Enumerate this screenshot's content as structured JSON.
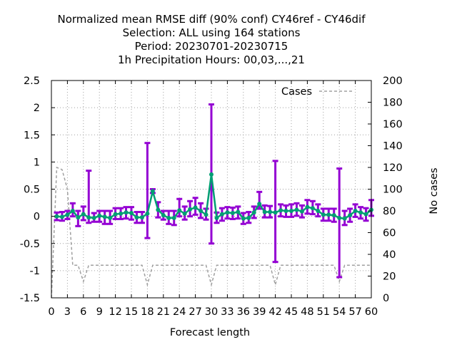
{
  "chart_data": {
    "type": "line",
    "title_lines": [
      "Normalized mean RMSE diff (90% conf) CY46ref - CY46dif",
      "Selection: ALL using   164 stations",
      "Period: 20230701-20230715",
      "1h Precipitation   Hours:  00,03,...,21"
    ],
    "xlabel": "Forecast length",
    "ylabel": "",
    "y2label": "No cases",
    "xlim": [
      0,
      60
    ],
    "ylim": [
      -1.5,
      2.5
    ],
    "y2lim": [
      0,
      200
    ],
    "x_ticks": [
      "0",
      "3",
      "6",
      "9",
      "12",
      "15",
      "18",
      "21",
      "24",
      "27",
      "30",
      "33",
      "36",
      "39",
      "42",
      "45",
      "48",
      "51",
      "54",
      "57",
      "60"
    ],
    "y_ticks": [
      "-1.5",
      "-1",
      "-0.5",
      "0",
      "0.5",
      "1",
      "1.5",
      "2",
      "2.5"
    ],
    "y2_ticks": [
      "0",
      "20",
      "40",
      "60",
      "80",
      "100",
      "120",
      "140",
      "160",
      "180",
      "200"
    ],
    "grid": true,
    "legend_position": "top-right",
    "legend_label": "Cases",
    "colors": {
      "errorbar": "#9400d3",
      "mean": "#009e73",
      "cases": "#a0a0a0"
    },
    "mean": {
      "x": [
        1,
        2,
        3,
        4,
        5,
        6,
        7,
        8,
        9,
        10,
        11,
        12,
        13,
        14,
        15,
        16,
        17,
        18,
        19,
        20,
        21,
        22,
        23,
        24,
        25,
        26,
        27,
        28,
        29,
        30,
        31,
        32,
        33,
        34,
        35,
        36,
        37,
        38,
        39,
        40,
        41,
        42,
        43,
        44,
        45,
        46,
        47,
        48,
        49,
        50,
        51,
        52,
        53,
        54,
        55,
        56,
        57,
        58,
        59,
        60
      ],
      "y": [
        0,
        -0.01,
        0.03,
        0.1,
        -0.02,
        0.04,
        -0.02,
        -0.03,
        0.01,
        -0.01,
        -0.03,
        0.04,
        0.05,
        0.07,
        0.06,
        -0.02,
        -0.02,
        0.05,
        0.46,
        0.12,
        0.02,
        -0.03,
        -0.03,
        0.11,
        0.05,
        0.13,
        0.16,
        0.1,
        0.03,
        0.77,
        -0.03,
        0.04,
        0.07,
        0.06,
        0.08,
        -0.04,
        -0.03,
        0.07,
        0.23,
        0.08,
        0.08,
        0.07,
        0.11,
        0.1,
        0.1,
        0.12,
        0.09,
        0.17,
        0.15,
        0.1,
        0.03,
        0.03,
        0.02,
        -0.03,
        -0.04,
        0.02,
        0.1,
        0.07,
        0.04,
        0.12
      ]
    },
    "err_low": [
      -0.07,
      -0.08,
      -0.05,
      0,
      -0.18,
      -0.07,
      -0.12,
      -0.1,
      -0.1,
      -0.14,
      -0.14,
      -0.05,
      -0.05,
      -0.04,
      -0.06,
      -0.12,
      -0.12,
      -0.4,
      0.43,
      -0.02,
      -0.06,
      -0.14,
      -0.16,
      0,
      -0.06,
      0,
      0.03,
      -0.03,
      -0.06,
      -0.5,
      -0.12,
      -0.08,
      -0.04,
      -0.05,
      -0.04,
      -0.14,
      -0.12,
      -0.03,
      0.14,
      -0.02,
      -0.02,
      -0.84,
      0,
      -0.01,
      -0.01,
      0.01,
      -0.02,
      0.05,
      0.04,
      0,
      -0.08,
      -0.08,
      -0.1,
      -1.12,
      -0.16,
      -0.1,
      -0.01,
      -0.04,
      -0.08,
      0.01
    ],
    "err_high": [
      0.07,
      0.08,
      0.1,
      0.24,
      0.1,
      0.18,
      0.84,
      0.06,
      0.1,
      0.1,
      0.1,
      0.15,
      0.15,
      0.17,
      0.17,
      0.08,
      0.08,
      1.35,
      0.5,
      0.26,
      0.1,
      0.1,
      0.1,
      0.32,
      0.18,
      0.28,
      0.34,
      0.24,
      0.14,
      2.06,
      0.07,
      0.15,
      0.17,
      0.16,
      0.18,
      0.06,
      0.08,
      0.18,
      0.45,
      0.2,
      0.19,
      1.02,
      0.22,
      0.2,
      0.22,
      0.24,
      0.2,
      0.3,
      0.28,
      0.22,
      0.14,
      0.14,
      0.14,
      0.88,
      0.1,
      0.14,
      0.22,
      0.17,
      0.15,
      0.3
    ],
    "cases": {
      "x": [
        1,
        2,
        3,
        4,
        5,
        6,
        7,
        8,
        9,
        10,
        11,
        12,
        13,
        14,
        15,
        16,
        17,
        18,
        19,
        20,
        21,
        22,
        23,
        24,
        25,
        26,
        27,
        28,
        29,
        30,
        31,
        32,
        33,
        34,
        35,
        36,
        37,
        38,
        39,
        40,
        41,
        42,
        43,
        44,
        45,
        46,
        47,
        48,
        49,
        50,
        51,
        52,
        53,
        54,
        55,
        56,
        57,
        58,
        59,
        60
      ],
      "y": [
        120,
        118,
        100,
        30,
        30,
        15,
        30,
        30,
        30,
        30,
        30,
        30,
        30,
        30,
        30,
        30,
        30,
        12,
        30,
        30,
        30,
        30,
        30,
        30,
        30,
        30,
        30,
        30,
        30,
        12,
        30,
        30,
        30,
        30,
        30,
        30,
        30,
        30,
        30,
        30,
        30,
        12,
        30,
        30,
        30,
        30,
        30,
        30,
        30,
        30,
        30,
        30,
        30,
        15,
        30,
        30,
        30,
        30,
        30,
        30
      ]
    }
  }
}
